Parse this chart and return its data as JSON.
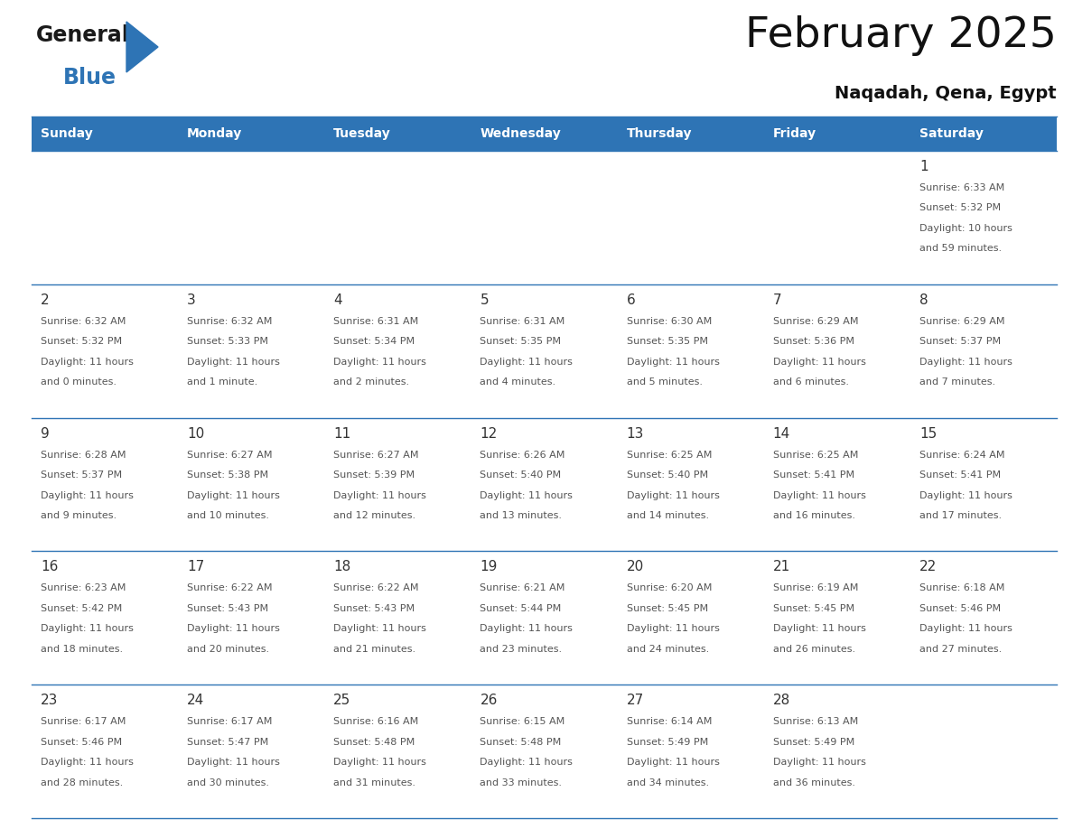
{
  "title": "February 2025",
  "subtitle": "Naqadah, Qena, Egypt",
  "header_bg": "#2E74B5",
  "header_text_color": "#FFFFFF",
  "cell_bg": "#FFFFFF",
  "grid_line_color": "#2E74B5",
  "day_number_color": "#333333",
  "text_color": "#555555",
  "days_of_week": [
    "Sunday",
    "Monday",
    "Tuesday",
    "Wednesday",
    "Thursday",
    "Friday",
    "Saturday"
  ],
  "weeks": [
    [
      null,
      null,
      null,
      null,
      null,
      null,
      1
    ],
    [
      2,
      3,
      4,
      5,
      6,
      7,
      8
    ],
    [
      9,
      10,
      11,
      12,
      13,
      14,
      15
    ],
    [
      16,
      17,
      18,
      19,
      20,
      21,
      22
    ],
    [
      23,
      24,
      25,
      26,
      27,
      28,
      null
    ]
  ],
  "day_data": {
    "1": {
      "sunrise": "6:33 AM",
      "sunset": "5:32 PM",
      "daylight_hours": 10,
      "daylight_minutes": 59
    },
    "2": {
      "sunrise": "6:32 AM",
      "sunset": "5:32 PM",
      "daylight_hours": 11,
      "daylight_minutes": 0
    },
    "3": {
      "sunrise": "6:32 AM",
      "sunset": "5:33 PM",
      "daylight_hours": 11,
      "daylight_minutes": 1
    },
    "4": {
      "sunrise": "6:31 AM",
      "sunset": "5:34 PM",
      "daylight_hours": 11,
      "daylight_minutes": 2
    },
    "5": {
      "sunrise": "6:31 AM",
      "sunset": "5:35 PM",
      "daylight_hours": 11,
      "daylight_minutes": 4
    },
    "6": {
      "sunrise": "6:30 AM",
      "sunset": "5:35 PM",
      "daylight_hours": 11,
      "daylight_minutes": 5
    },
    "7": {
      "sunrise": "6:29 AM",
      "sunset": "5:36 PM",
      "daylight_hours": 11,
      "daylight_minutes": 6
    },
    "8": {
      "sunrise": "6:29 AM",
      "sunset": "5:37 PM",
      "daylight_hours": 11,
      "daylight_minutes": 7
    },
    "9": {
      "sunrise": "6:28 AM",
      "sunset": "5:37 PM",
      "daylight_hours": 11,
      "daylight_minutes": 9
    },
    "10": {
      "sunrise": "6:27 AM",
      "sunset": "5:38 PM",
      "daylight_hours": 11,
      "daylight_minutes": 10
    },
    "11": {
      "sunrise": "6:27 AM",
      "sunset": "5:39 PM",
      "daylight_hours": 11,
      "daylight_minutes": 12
    },
    "12": {
      "sunrise": "6:26 AM",
      "sunset": "5:40 PM",
      "daylight_hours": 11,
      "daylight_minutes": 13
    },
    "13": {
      "sunrise": "6:25 AM",
      "sunset": "5:40 PM",
      "daylight_hours": 11,
      "daylight_minutes": 14
    },
    "14": {
      "sunrise": "6:25 AM",
      "sunset": "5:41 PM",
      "daylight_hours": 11,
      "daylight_minutes": 16
    },
    "15": {
      "sunrise": "6:24 AM",
      "sunset": "5:41 PM",
      "daylight_hours": 11,
      "daylight_minutes": 17
    },
    "16": {
      "sunrise": "6:23 AM",
      "sunset": "5:42 PM",
      "daylight_hours": 11,
      "daylight_minutes": 18
    },
    "17": {
      "sunrise": "6:22 AM",
      "sunset": "5:43 PM",
      "daylight_hours": 11,
      "daylight_minutes": 20
    },
    "18": {
      "sunrise": "6:22 AM",
      "sunset": "5:43 PM",
      "daylight_hours": 11,
      "daylight_minutes": 21
    },
    "19": {
      "sunrise": "6:21 AM",
      "sunset": "5:44 PM",
      "daylight_hours": 11,
      "daylight_minutes": 23
    },
    "20": {
      "sunrise": "6:20 AM",
      "sunset": "5:45 PM",
      "daylight_hours": 11,
      "daylight_minutes": 24
    },
    "21": {
      "sunrise": "6:19 AM",
      "sunset": "5:45 PM",
      "daylight_hours": 11,
      "daylight_minutes": 26
    },
    "22": {
      "sunrise": "6:18 AM",
      "sunset": "5:46 PM",
      "daylight_hours": 11,
      "daylight_minutes": 27
    },
    "23": {
      "sunrise": "6:17 AM",
      "sunset": "5:46 PM",
      "daylight_hours": 11,
      "daylight_minutes": 28
    },
    "24": {
      "sunrise": "6:17 AM",
      "sunset": "5:47 PM",
      "daylight_hours": 11,
      "daylight_minutes": 30
    },
    "25": {
      "sunrise": "6:16 AM",
      "sunset": "5:48 PM",
      "daylight_hours": 11,
      "daylight_minutes": 31
    },
    "26": {
      "sunrise": "6:15 AM",
      "sunset": "5:48 PM",
      "daylight_hours": 11,
      "daylight_minutes": 33
    },
    "27": {
      "sunrise": "6:14 AM",
      "sunset": "5:49 PM",
      "daylight_hours": 11,
      "daylight_minutes": 34
    },
    "28": {
      "sunrise": "6:13 AM",
      "sunset": "5:49 PM",
      "daylight_hours": 11,
      "daylight_minutes": 36
    }
  },
  "logo_text_general": "General",
  "logo_text_blue": "Blue",
  "logo_color_general": "#1a1a1a",
  "logo_color_blue": "#2E74B5",
  "logo_triangle_color": "#2E74B5",
  "fig_width": 11.88,
  "fig_height": 9.18,
  "dpi": 100
}
